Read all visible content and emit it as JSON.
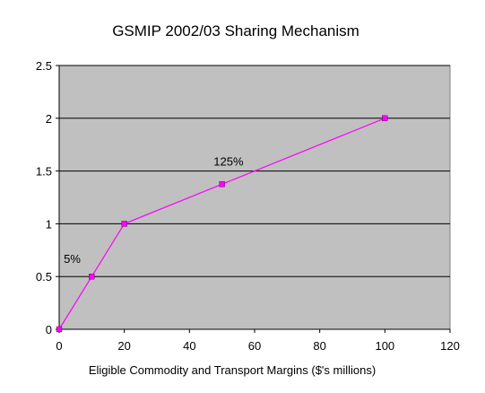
{
  "chart_data": {
    "type": "line",
    "title": "GSMIP 2002/03 Sharing Mechanism",
    "xlabel": "Eligible Commodity and Transport Margins ($'s millions)",
    "ylabel": "",
    "xlim": [
      0,
      120
    ],
    "ylim": [
      0,
      2.5
    ],
    "xticks": [
      0,
      20,
      40,
      60,
      80,
      100,
      120
    ],
    "yticks": [
      0,
      0.5,
      1,
      1.5,
      2,
      2.5
    ],
    "xtick_labels": [
      "0",
      "20",
      "40",
      "60",
      "80",
      "100",
      "120"
    ],
    "ytick_labels": [
      "0",
      "0.5",
      "1",
      "1.5",
      "2",
      "2.5"
    ],
    "grid": "horizontal",
    "legend": "none",
    "series": [
      {
        "x": [
          0,
          10,
          20,
          50,
          100
        ],
        "y": [
          0,
          0.5,
          1.0,
          1.375,
          2.0
        ],
        "color": "#ff00ff",
        "marker": "square"
      }
    ],
    "annotations": [
      {
        "text": "5%",
        "x": 4,
        "y": 0.63
      },
      {
        "text": "125%",
        "x": 52,
        "y": 1.55
      }
    ],
    "plot_background": "#c0c0c0"
  }
}
